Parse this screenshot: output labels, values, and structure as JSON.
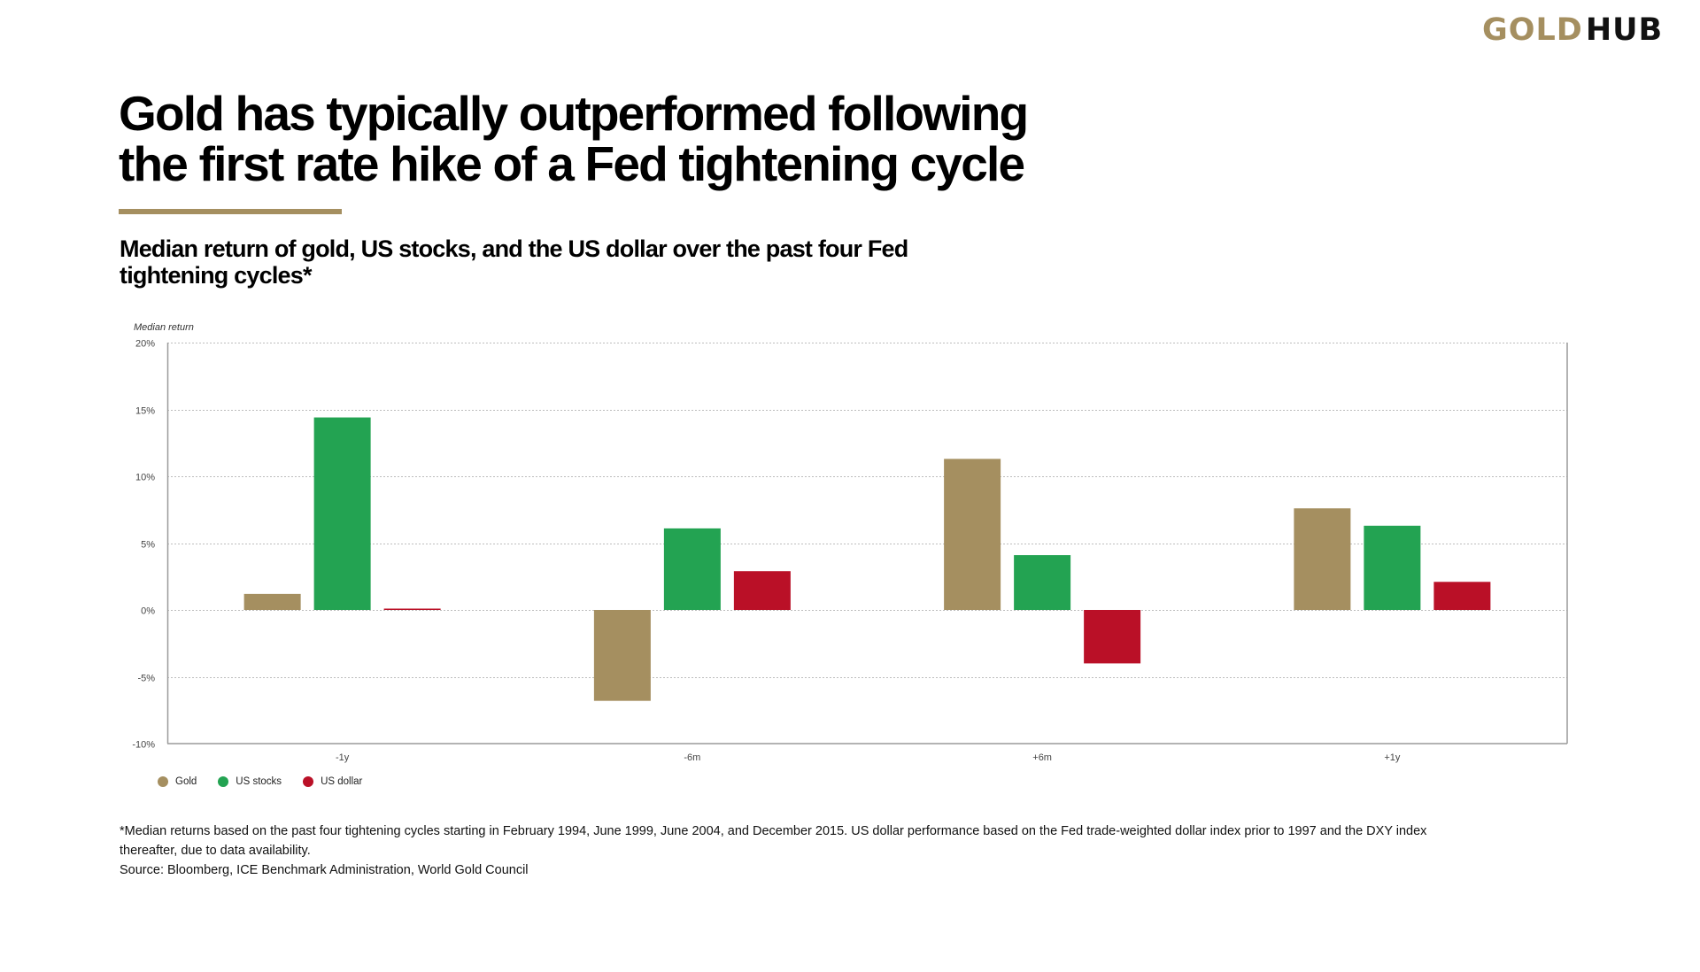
{
  "logo": {
    "part1": "GOLD",
    "part2": "HUB"
  },
  "title": {
    "line1": "Gold has typically outperformed following",
    "line2": "the first rate hike of a Fed tightening cycle"
  },
  "subtitle": {
    "line1": "Median return of gold, US stocks, and the US dollar over the past four Fed",
    "line2": "tightening cycles*"
  },
  "colors": {
    "gold": "#A58F60",
    "stocks": "#23A352",
    "dollar": "#BA1027",
    "accent": "#A58F60"
  },
  "chart_data": {
    "type": "bar",
    "title": "Median return of gold, US stocks, and the US dollar over the past four Fed tightening cycles*",
    "xlabel": "",
    "ylabel": "Median return",
    "categories": [
      "-1y",
      "-6m",
      "+6m",
      "+1y"
    ],
    "series": [
      {
        "name": "Gold",
        "color": "#A58F60",
        "values": [
          1.2,
          -6.8,
          11.3,
          7.6
        ]
      },
      {
        "name": "US stocks",
        "color": "#23A352",
        "values": [
          14.4,
          6.1,
          4.1,
          6.3
        ]
      },
      {
        "name": "US dollar",
        "color": "#BA1027",
        "values": [
          0.1,
          2.9,
          -4.0,
          2.1
        ]
      }
    ],
    "ylim": [
      -10,
      20
    ],
    "yticks": [
      -10,
      -5,
      0,
      5,
      10,
      15,
      20
    ],
    "ytick_labels": [
      "-10%",
      "-5%",
      "0%",
      "5%",
      "10%",
      "15%",
      "20%"
    ],
    "unit": "%",
    "grid": true,
    "legend_position": "bottom-left"
  },
  "footnote": {
    "line1": "*Median returns based on the past four tightening cycles starting in February 1994, June 1999, June 2004, and December 2015. US dollar performance based on the Fed trade-weighted dollar index prior to 1997 and the DXY index",
    "line2": "thereafter, due to data availability.",
    "source": "Source: Bloomberg, ICE Benchmark Administration, World Gold Council"
  }
}
